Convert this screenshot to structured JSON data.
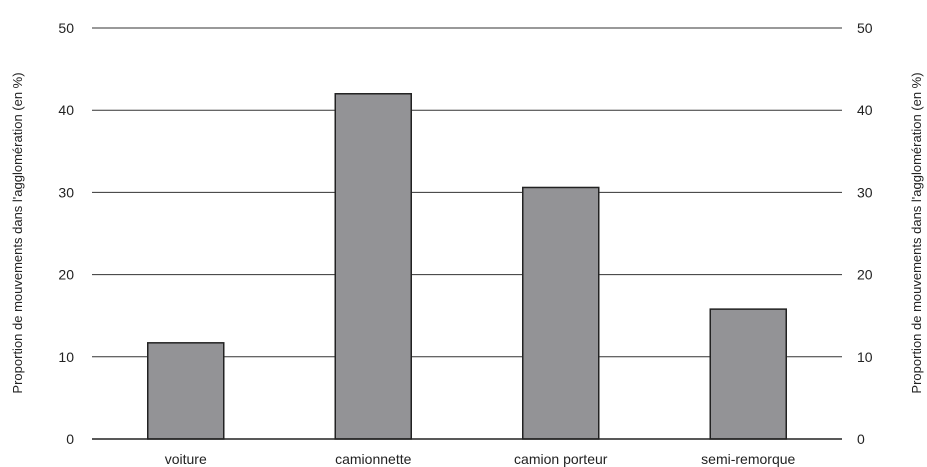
{
  "chart_data": {
    "type": "bar",
    "categories": [
      "voiture",
      "camionnette",
      "camion porteur",
      "semi-remorque"
    ],
    "values": [
      11.7,
      42.0,
      30.6,
      15.8
    ],
    "title": "",
    "xlabel": "",
    "ylabel": "Proportion de mouvements dans l'agglomération (en %)",
    "ylabel_right": "Proportion de mouvements dans l'agglomération (en %)",
    "ylim": [
      0,
      50
    ],
    "yticks": [
      0,
      10,
      20,
      30,
      40,
      50
    ],
    "grid": true,
    "legend": "none",
    "bar_color": "#939396"
  }
}
